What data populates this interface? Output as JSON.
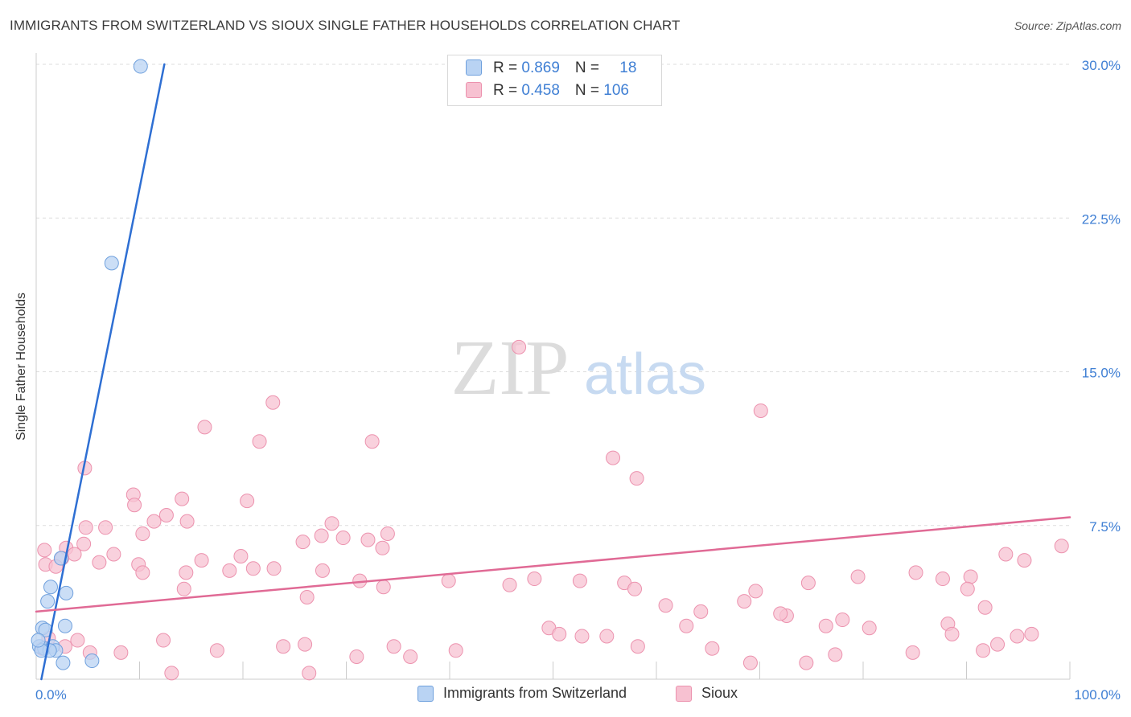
{
  "title": "IMMIGRANTS FROM SWITZERLAND VS SIOUX SINGLE FATHER HOUSEHOLDS CORRELATION CHART",
  "source": "Source: ZipAtlas.com",
  "watermark": {
    "zip": "ZIP",
    "atlas": "atlas"
  },
  "colors": {
    "blue_fill": "#b9d3f3",
    "blue_stroke": "#6fa0dd",
    "blue_line": "#2e6fd3",
    "pink_fill": "#f7c1d1",
    "pink_stroke": "#ec92ae",
    "pink_line": "#e06a95",
    "tick_label": "#3f7fd4",
    "grid": "#dddddd"
  },
  "legend": {
    "rows": [
      {
        "r_label": "R = ",
        "r_value": "0.869",
        "n_label": "N = ",
        "n_value": "18"
      },
      {
        "r_label": "R = ",
        "r_value": "0.458",
        "n_label": "N = ",
        "n_value": "106"
      }
    ],
    "series_names": [
      "Immigrants from Switzerland",
      "Sioux"
    ]
  },
  "chart_data": {
    "type": "scatter",
    "title": "IMMIGRANTS FROM SWITZERLAND VS SIOUX SINGLE FATHER HOUSEHOLDS CORRELATION CHART",
    "xlabel": "",
    "ylabel": "Single Father Households",
    "xlim": [
      0,
      100
    ],
    "ylim": [
      0,
      30
    ],
    "x_tick_labels": [
      "0.0%",
      "100.0%"
    ],
    "y_ticks": [
      7.5,
      15.0,
      22.5,
      30.0
    ],
    "y_tick_labels": [
      "7.5%",
      "15.0%",
      "22.5%",
      "30.0%"
    ],
    "grid": true,
    "legend_position": "top-center",
    "series": [
      {
        "name": "Immigrants from Switzerland",
        "r": 0.869,
        "n": 18,
        "trend": {
          "x": [
            0.5,
            12.4
          ],
          "y": [
            0.0,
            30.0
          ]
        },
        "points": [
          [
            10.1,
            29.9
          ],
          [
            7.3,
            20.3
          ],
          [
            2.4,
            5.9
          ],
          [
            1.4,
            4.5
          ],
          [
            2.9,
            4.2
          ],
          [
            1.1,
            3.8
          ],
          [
            0.6,
            2.5
          ],
          [
            0.9,
            2.4
          ],
          [
            2.8,
            2.6
          ],
          [
            0.3,
            1.6
          ],
          [
            0.8,
            1.5
          ],
          [
            1.6,
            1.6
          ],
          [
            1.9,
            1.4
          ],
          [
            1.3,
            1.4
          ],
          [
            0.5,
            1.4
          ],
          [
            2.6,
            0.8
          ],
          [
            5.4,
            0.9
          ],
          [
            0.2,
            1.9
          ]
        ]
      },
      {
        "name": "Sioux",
        "r": 0.458,
        "n": 106,
        "trend": {
          "x": [
            0.0,
            100.0
          ],
          "y": [
            3.3,
            7.9
          ]
        },
        "points": [
          [
            70.1,
            13.1
          ],
          [
            46.7,
            16.2
          ],
          [
            22.9,
            13.5
          ],
          [
            16.3,
            12.3
          ],
          [
            21.6,
            11.6
          ],
          [
            32.5,
            11.6
          ],
          [
            55.8,
            10.8
          ],
          [
            58.1,
            9.8
          ],
          [
            4.7,
            10.3
          ],
          [
            9.4,
            9.0
          ],
          [
            9.5,
            8.5
          ],
          [
            14.1,
            8.8
          ],
          [
            12.6,
            8.0
          ],
          [
            11.4,
            7.7
          ],
          [
            14.6,
            7.7
          ],
          [
            10.3,
            7.1
          ],
          [
            20.4,
            8.7
          ],
          [
            6.7,
            7.4
          ],
          [
            4.8,
            7.4
          ],
          [
            27.6,
            7.0
          ],
          [
            28.6,
            7.6
          ],
          [
            29.7,
            6.9
          ],
          [
            34.0,
            7.1
          ],
          [
            32.1,
            6.8
          ],
          [
            25.8,
            6.7
          ],
          [
            33.5,
            6.4
          ],
          [
            4.6,
            6.6
          ],
          [
            2.9,
            6.4
          ],
          [
            3.7,
            6.1
          ],
          [
            7.5,
            6.1
          ],
          [
            0.8,
            6.3
          ],
          [
            2.5,
            5.9
          ],
          [
            0.9,
            5.6
          ],
          [
            1.9,
            5.5
          ],
          [
            6.1,
            5.7
          ],
          [
            9.9,
            5.6
          ],
          [
            10.3,
            5.2
          ],
          [
            16.0,
            5.8
          ],
          [
            19.8,
            6.0
          ],
          [
            21.0,
            5.4
          ],
          [
            23.0,
            5.4
          ],
          [
            27.7,
            5.3
          ],
          [
            31.3,
            4.8
          ],
          [
            33.6,
            4.5
          ],
          [
            14.5,
            5.2
          ],
          [
            18.7,
            5.3
          ],
          [
            14.3,
            4.4
          ],
          [
            26.2,
            4.0
          ],
          [
            39.9,
            4.8
          ],
          [
            45.8,
            4.6
          ],
          [
            48.2,
            4.9
          ],
          [
            52.6,
            4.8
          ],
          [
            56.9,
            4.7
          ],
          [
            57.9,
            4.4
          ],
          [
            60.9,
            3.6
          ],
          [
            64.3,
            3.3
          ],
          [
            68.5,
            3.8
          ],
          [
            69.6,
            4.3
          ],
          [
            72.6,
            3.1
          ],
          [
            74.7,
            4.7
          ],
          [
            79.5,
            5.0
          ],
          [
            85.1,
            5.2
          ],
          [
            87.7,
            4.9
          ],
          [
            90.4,
            5.0
          ],
          [
            93.8,
            6.1
          ],
          [
            95.6,
            5.8
          ],
          [
            99.2,
            6.5
          ],
          [
            72.0,
            3.2
          ],
          [
            78.0,
            2.9
          ],
          [
            76.4,
            2.6
          ],
          [
            88.2,
            2.7
          ],
          [
            90.1,
            4.4
          ],
          [
            91.8,
            3.5
          ],
          [
            80.6,
            2.5
          ],
          [
            88.6,
            2.2
          ],
          [
            94.9,
            2.1
          ],
          [
            96.3,
            2.2
          ],
          [
            93.0,
            1.7
          ],
          [
            91.6,
            1.4
          ],
          [
            84.8,
            1.3
          ],
          [
            77.3,
            1.2
          ],
          [
            65.4,
            1.5
          ],
          [
            69.1,
            0.8
          ],
          [
            74.5,
            0.8
          ],
          [
            52.8,
            2.1
          ],
          [
            55.2,
            2.1
          ],
          [
            58.2,
            1.6
          ],
          [
            62.9,
            2.6
          ],
          [
            49.6,
            2.5
          ],
          [
            50.6,
            2.2
          ],
          [
            40.6,
            1.4
          ],
          [
            36.2,
            1.1
          ],
          [
            34.6,
            1.6
          ],
          [
            31.0,
            1.1
          ],
          [
            26.0,
            1.7
          ],
          [
            23.9,
            1.6
          ],
          [
            17.5,
            1.4
          ],
          [
            12.3,
            1.9
          ],
          [
            8.2,
            1.3
          ],
          [
            4.0,
            1.9
          ],
          [
            2.8,
            1.6
          ],
          [
            5.2,
            1.3
          ],
          [
            13.1,
            0.3
          ],
          [
            26.4,
            0.3
          ],
          [
            1.2,
            2.0
          ],
          [
            0.6,
            1.5
          ]
        ]
      }
    ]
  }
}
